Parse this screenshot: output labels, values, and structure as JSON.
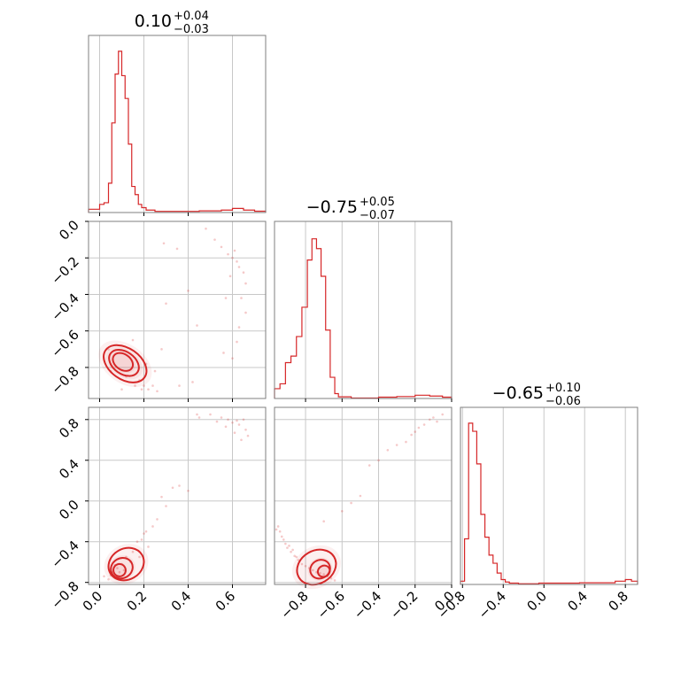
{
  "chart_data": {
    "type": "corner",
    "color": "#d62728",
    "grid": true,
    "panels": {
      "hist_1": {
        "title": {
          "median": "0.10",
          "plus": "+0.04",
          "minus": "−0.03"
        },
        "xlim": [
          -0.05,
          0.75
        ],
        "bins": [
          [
            -0.05,
            0.02
          ],
          [
            0.0,
            0.05
          ],
          [
            0.02,
            0.06
          ],
          [
            0.04,
            0.18
          ],
          [
            0.055,
            0.55
          ],
          [
            0.07,
            0.85
          ],
          [
            0.085,
            0.99
          ],
          [
            0.1,
            0.84
          ],
          [
            0.115,
            0.7
          ],
          [
            0.13,
            0.42
          ],
          [
            0.145,
            0.16
          ],
          [
            0.16,
            0.11
          ],
          [
            0.175,
            0.05
          ],
          [
            0.19,
            0.03
          ],
          [
            0.21,
            0.015
          ],
          [
            0.25,
            0.007
          ],
          [
            0.35,
            0.007
          ],
          [
            0.45,
            0.01
          ],
          [
            0.55,
            0.015
          ],
          [
            0.6,
            0.025
          ],
          [
            0.65,
            0.015
          ],
          [
            0.7,
            0.008
          ],
          [
            0.75,
            0.0
          ]
        ]
      },
      "hist_2": {
        "title": {
          "median": "−0.75",
          "plus": "+0.05",
          "minus": "−0.07"
        },
        "xlim": [
          -0.97,
          0.0
        ],
        "bins": [
          [
            -0.97,
            0.06
          ],
          [
            -0.94,
            0.09
          ],
          [
            -0.91,
            0.22
          ],
          [
            -0.88,
            0.26
          ],
          [
            -0.85,
            0.38
          ],
          [
            -0.82,
            0.56
          ],
          [
            -0.79,
            0.85
          ],
          [
            -0.765,
            0.98
          ],
          [
            -0.74,
            0.92
          ],
          [
            -0.715,
            0.75
          ],
          [
            -0.69,
            0.42
          ],
          [
            -0.665,
            0.13
          ],
          [
            -0.64,
            0.03
          ],
          [
            -0.62,
            0.01
          ],
          [
            -0.55,
            0.003
          ],
          [
            -0.4,
            0.008
          ],
          [
            -0.3,
            0.012
          ],
          [
            -0.2,
            0.02
          ],
          [
            -0.12,
            0.015
          ],
          [
            -0.05,
            0.008
          ],
          [
            0.0,
            0.0
          ]
        ]
      },
      "hist_3": {
        "title": {
          "median": "−0.65",
          "plus": "+0.10",
          "minus": "−0.06"
        },
        "xlim": [
          -0.82,
          0.92
        ],
        "bins": [
          [
            -0.82,
            0.02
          ],
          [
            -0.78,
            0.28
          ],
          [
            -0.74,
            0.99
          ],
          [
            -0.7,
            0.94
          ],
          [
            -0.66,
            0.74
          ],
          [
            -0.62,
            0.43
          ],
          [
            -0.58,
            0.29
          ],
          [
            -0.54,
            0.18
          ],
          [
            -0.5,
            0.13
          ],
          [
            -0.46,
            0.07
          ],
          [
            -0.42,
            0.03
          ],
          [
            -0.38,
            0.015
          ],
          [
            -0.34,
            0.008
          ],
          [
            -0.25,
            0.004
          ],
          [
            -0.05,
            0.008
          ],
          [
            0.15,
            0.008
          ],
          [
            0.35,
            0.01
          ],
          [
            0.55,
            0.01
          ],
          [
            0.7,
            0.02
          ],
          [
            0.8,
            0.03
          ],
          [
            0.86,
            0.02
          ],
          [
            0.92,
            0.0
          ]
        ]
      },
      "scatter_2_vs_1": {
        "xlim": [
          -0.05,
          0.75
        ],
        "ylim": [
          -0.97,
          0.0
        ],
        "points": [
          [
            0.48,
            -0.04
          ],
          [
            0.52,
            -0.1
          ],
          [
            0.55,
            -0.14
          ],
          [
            0.58,
            -0.18
          ],
          [
            0.6,
            -0.2
          ],
          [
            0.62,
            -0.22
          ],
          [
            0.65,
            -0.28
          ],
          [
            0.63,
            -0.25
          ],
          [
            0.61,
            -0.16
          ],
          [
            0.66,
            -0.34
          ],
          [
            0.64,
            -0.42
          ],
          [
            0.59,
            -0.3
          ],
          [
            0.57,
            -0.42
          ],
          [
            0.66,
            -0.5
          ],
          [
            0.63,
            -0.58
          ],
          [
            0.6,
            -0.75
          ],
          [
            0.56,
            -0.72
          ],
          [
            0.62,
            -0.66
          ],
          [
            0.35,
            -0.15
          ],
          [
            0.3,
            -0.45
          ],
          [
            0.28,
            -0.7
          ],
          [
            0.42,
            -0.88
          ],
          [
            0.36,
            -0.9
          ],
          [
            0.25,
            -0.82
          ],
          [
            0.22,
            -0.92
          ],
          [
            0.2,
            -0.9
          ],
          [
            0.18,
            -0.87
          ],
          [
            0.24,
            -0.9
          ],
          [
            0.12,
            -0.85
          ],
          [
            0.16,
            -0.9
          ],
          [
            0.19,
            -0.92
          ],
          [
            0.05,
            -0.82
          ],
          [
            0.04,
            -0.7
          ],
          [
            0.15,
            -0.65
          ],
          [
            0.21,
            -0.78
          ],
          [
            0.1,
            -0.92
          ],
          [
            0.26,
            -0.93
          ],
          [
            0.44,
            -0.57
          ],
          [
            0.4,
            -0.38
          ],
          [
            0.29,
            -0.12
          ]
        ],
        "contours": [
          {
            "cx": 0.105,
            "cy": -0.77,
            "rx": 0.035,
            "ry": 0.06,
            "angle": -55
          },
          {
            "cx": 0.11,
            "cy": -0.775,
            "rx": 0.05,
            "ry": 0.09,
            "angle": -55
          },
          {
            "cx": 0.115,
            "cy": -0.78,
            "rx": 0.07,
            "ry": 0.13,
            "angle": -55
          }
        ]
      },
      "scatter_3_vs_1": {
        "xlim": [
          -0.05,
          0.75
        ],
        "ylim": [
          -0.82,
          0.92
        ],
        "points": [
          [
            0.5,
            0.85
          ],
          [
            0.55,
            0.82
          ],
          [
            0.58,
            0.8
          ],
          [
            0.62,
            0.79
          ],
          [
            0.65,
            0.8
          ],
          [
            0.6,
            0.77
          ],
          [
            0.63,
            0.75
          ],
          [
            0.66,
            0.7
          ],
          [
            0.61,
            0.67
          ],
          [
            0.67,
            0.64
          ],
          [
            0.45,
            0.82
          ],
          [
            0.53,
            0.78
          ],
          [
            0.64,
            0.6
          ],
          [
            0.4,
            0.1
          ],
          [
            0.36,
            0.15
          ],
          [
            0.28,
            0.04
          ],
          [
            0.24,
            -0.25
          ],
          [
            0.2,
            -0.32
          ],
          [
            0.17,
            -0.4
          ],
          [
            0.22,
            -0.45
          ],
          [
            0.15,
            -0.5
          ],
          [
            0.12,
            -0.55
          ],
          [
            0.18,
            -0.55
          ],
          [
            0.1,
            -0.62
          ],
          [
            0.08,
            -0.66
          ],
          [
            0.14,
            -0.6
          ],
          [
            0.06,
            -0.7
          ],
          [
            0.05,
            -0.73
          ],
          [
            0.09,
            -0.7
          ],
          [
            0.04,
            -0.77
          ],
          [
            0.3,
            -0.05
          ],
          [
            0.33,
            0.13
          ],
          [
            0.26,
            -0.18
          ],
          [
            0.19,
            -0.38
          ],
          [
            0.11,
            -0.68
          ],
          [
            0.02,
            -0.74
          ],
          [
            0.07,
            -0.63
          ],
          [
            0.44,
            0.85
          ],
          [
            0.57,
            0.73
          ],
          [
            0.21,
            -0.3
          ]
        ],
        "contours": [
          {
            "cx": 0.09,
            "cy": -0.68,
            "rx": 0.028,
            "ry": 0.06,
            "angle": 60
          },
          {
            "cx": 0.1,
            "cy": -0.66,
            "rx": 0.045,
            "ry": 0.11,
            "angle": 60
          },
          {
            "cx": 0.12,
            "cy": -0.62,
            "rx": 0.07,
            "ry": 0.18,
            "angle": 60
          }
        ]
      },
      "scatter_3_vs_2": {
        "xlim": [
          -0.97,
          0.0
        ],
        "ylim": [
          -0.82,
          0.92
        ],
        "points": [
          [
            -0.95,
            -0.25
          ],
          [
            -0.94,
            -0.3
          ],
          [
            -0.93,
            -0.35
          ],
          [
            -0.92,
            -0.38
          ],
          [
            -0.91,
            -0.42
          ],
          [
            -0.9,
            -0.46
          ],
          [
            -0.88,
            -0.5
          ],
          [
            -0.86,
            -0.54
          ],
          [
            -0.84,
            -0.58
          ],
          [
            -0.82,
            -0.62
          ],
          [
            -0.8,
            -0.64
          ],
          [
            -0.78,
            -0.66
          ],
          [
            -0.76,
            -0.68
          ],
          [
            -0.74,
            -0.7
          ],
          [
            -0.72,
            -0.71
          ],
          [
            -0.7,
            -0.72
          ],
          [
            -0.68,
            -0.74
          ],
          [
            -0.66,
            -0.76
          ],
          [
            -0.64,
            -0.78
          ],
          [
            -0.87,
            -0.48
          ],
          [
            -0.85,
            -0.55
          ],
          [
            -0.96,
            -0.28
          ],
          [
            -0.89,
            -0.44
          ],
          [
            -0.6,
            -0.1
          ],
          [
            -0.5,
            0.05
          ],
          [
            -0.45,
            0.35
          ],
          [
            -0.4,
            0.4
          ],
          [
            -0.3,
            0.55
          ],
          [
            -0.25,
            0.58
          ],
          [
            -0.2,
            0.68
          ],
          [
            -0.15,
            0.75
          ],
          [
            -0.12,
            0.8
          ],
          [
            -0.1,
            0.82
          ],
          [
            -0.08,
            0.78
          ],
          [
            -0.18,
            0.72
          ],
          [
            -0.22,
            0.65
          ],
          [
            -0.05,
            0.85
          ],
          [
            -0.35,
            0.5
          ],
          [
            -0.55,
            -0.02
          ],
          [
            -0.7,
            -0.2
          ]
        ],
        "contours": [
          {
            "cx": -0.7,
            "cy": -0.69,
            "rx": 0.03,
            "ry": 0.06,
            "angle": 60
          },
          {
            "cx": -0.72,
            "cy": -0.67,
            "rx": 0.05,
            "ry": 0.1,
            "angle": 60
          },
          {
            "cx": -0.74,
            "cy": -0.65,
            "rx": 0.09,
            "ry": 0.2,
            "angle": 60
          }
        ]
      }
    },
    "ticks": {
      "p1": [
        {
          "v": 0.0,
          "label": "0.0"
        },
        {
          "v": 0.2,
          "label": "0.2"
        },
        {
          "v": 0.4,
          "label": "0.4"
        },
        {
          "v": 0.6,
          "label": "0.6"
        }
      ],
      "p2": [
        {
          "v": -0.8,
          "label": "−0.8"
        },
        {
          "v": -0.6,
          "label": "−0.6"
        },
        {
          "v": -0.4,
          "label": "−0.4"
        },
        {
          "v": -0.2,
          "label": "−0.2"
        },
        {
          "v": 0.0,
          "label": "0.0"
        }
      ],
      "p3": [
        {
          "v": -0.8,
          "label": "−0.8"
        },
        {
          "v": -0.4,
          "label": "−0.4"
        },
        {
          "v": 0.0,
          "label": "0.0"
        },
        {
          "v": 0.4,
          "label": "0.4"
        },
        {
          "v": 0.8,
          "label": "0.8"
        }
      ]
    }
  }
}
